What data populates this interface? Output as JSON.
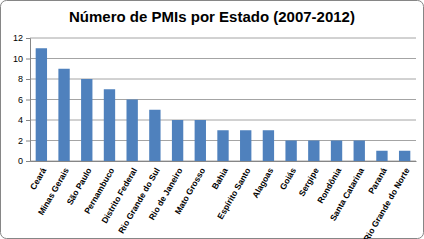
{
  "chart_data": {
    "type": "bar",
    "title": "Número de PMIs por Estado (2007-2012)",
    "categories": [
      "Ceará",
      "Minas Gerais",
      "São Paulo",
      "Pernambuco",
      "Distrito Federal",
      "Rio Grande do Sul",
      "Rio de Janeiro",
      "Mato Grosso",
      "Bahia",
      "Espírito Santo",
      "Alagoas",
      "Goiás",
      "Sergipe",
      "Rondônia",
      "Santa Catarina",
      "Paraná",
      "Rio Grande do Norte"
    ],
    "values": [
      11,
      9,
      8,
      7,
      6,
      5,
      4,
      4,
      3,
      3,
      3,
      2,
      2,
      2,
      2,
      1,
      1
    ],
    "color": "#4f81bd",
    "ylim": [
      0,
      12
    ],
    "yticks": [
      0,
      2,
      4,
      6,
      8,
      10,
      12
    ],
    "grid": true
  }
}
